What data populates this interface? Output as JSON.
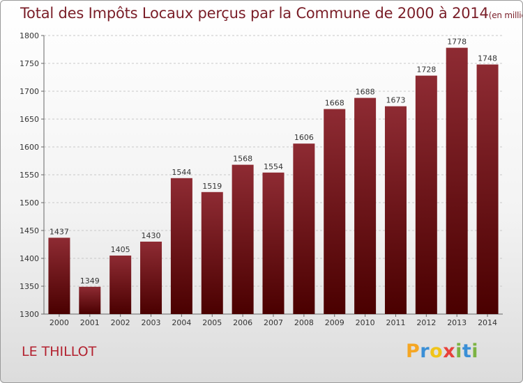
{
  "title": "Total des Impôts Locaux perçus par la Commune de 2000 à 2014",
  "unit_note": "(en milliers d'€)",
  "place_name": "LE THILLOT",
  "logo": {
    "letters": [
      "P",
      "r",
      "o",
      "x",
      "i",
      "t",
      "i"
    ],
    "colors": [
      "#f5a623",
      "#3a8fd6",
      "#f0c419",
      "#e8413b",
      "#7cb342",
      "#3a8fd6",
      "#7cb342"
    ]
  },
  "colors": {
    "bar_top": "#8e2b33",
    "bar_bottom": "#4a0000",
    "title": "#7a1e28",
    "place": "#b3212f"
  },
  "chart_data": {
    "type": "bar",
    "categories": [
      "2000",
      "2001",
      "2002",
      "2003",
      "2004",
      "2005",
      "2006",
      "2007",
      "2008",
      "2009",
      "2010",
      "2011",
      "2012",
      "2013",
      "2014"
    ],
    "values": [
      1437,
      1349,
      1405,
      1430,
      1544,
      1519,
      1568,
      1554,
      1606,
      1668,
      1688,
      1673,
      1728,
      1778,
      1748
    ],
    "y_ticks": [
      1300,
      1350,
      1400,
      1450,
      1500,
      1550,
      1600,
      1650,
      1700,
      1750,
      1800
    ],
    "ylim": [
      1300,
      1800
    ],
    "grid": true,
    "data_labels": true
  }
}
